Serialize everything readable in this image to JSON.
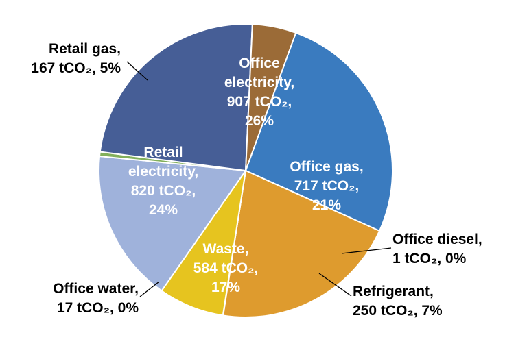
{
  "chart_data": {
    "type": "pie",
    "unit": "tCO₂",
    "slices": [
      {
        "name": "Office electricity",
        "value": 907,
        "percent": "26%",
        "color": "#3a7bbf",
        "label": [
          "Office",
          "electricity,",
          "907 tCO₂,",
          "26%"
        ]
      },
      {
        "name": "Office gas",
        "value": 717,
        "percent": "21%",
        "color": "#de9b2e",
        "label": [
          "Office gas,",
          "717 tCO₂,",
          "21%"
        ]
      },
      {
        "name": "Office diesel",
        "value": 1,
        "percent": "0%",
        "color": "#ddb52a",
        "label": [
          "Office diesel,",
          "1 tCO₂, 0%"
        ]
      },
      {
        "name": "Refrigerant",
        "value": 250,
        "percent": "7%",
        "color": "#e6c41f",
        "label": [
          "Refrigerant,",
          "250 tCO₂, 7%"
        ]
      },
      {
        "name": "Waste",
        "value": 584,
        "percent": "17%",
        "color": "#9fb2db",
        "label": [
          "Waste,",
          "584 tCO₂,",
          "17%"
        ]
      },
      {
        "name": "Office water",
        "value": 17,
        "percent": "0%",
        "color": "#83b05c",
        "label": [
          "Office water,",
          "17 tCO₂, 0%"
        ]
      },
      {
        "name": "Retail electricity",
        "value": 820,
        "percent": "24%",
        "color": "#465e96",
        "label": [
          "Retail",
          "electricity,",
          "820 tCO₂,",
          "24%"
        ]
      },
      {
        "name": "Retail gas",
        "value": 167,
        "percent": "5%",
        "color": "#9b6b37",
        "label": [
          "Retail gas,",
          "167 tCO₂, 5%"
        ]
      }
    ]
  }
}
